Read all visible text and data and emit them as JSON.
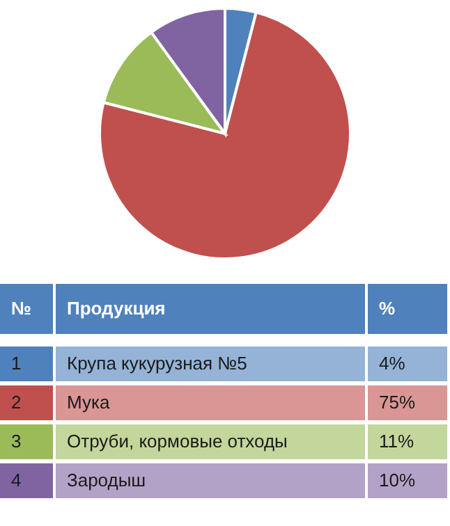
{
  "chart_data": {
    "type": "pie",
    "categories": [
      "Крупа кукурузная №5",
      "Мука",
      "Отруби, кормовые отходы",
      "Зародыш"
    ],
    "values": [
      4,
      75,
      11,
      10
    ],
    "value_labels": [
      "4%",
      "75%",
      "11%",
      "10%"
    ],
    "colors": [
      "#4f81bd",
      "#c0504d",
      "#9bbb59",
      "#8064a2"
    ],
    "annotations": [
      "№",
      "Продукция",
      "%",
      "1",
      "2",
      "3",
      "4"
    ],
    "legend": "bottom"
  }
}
